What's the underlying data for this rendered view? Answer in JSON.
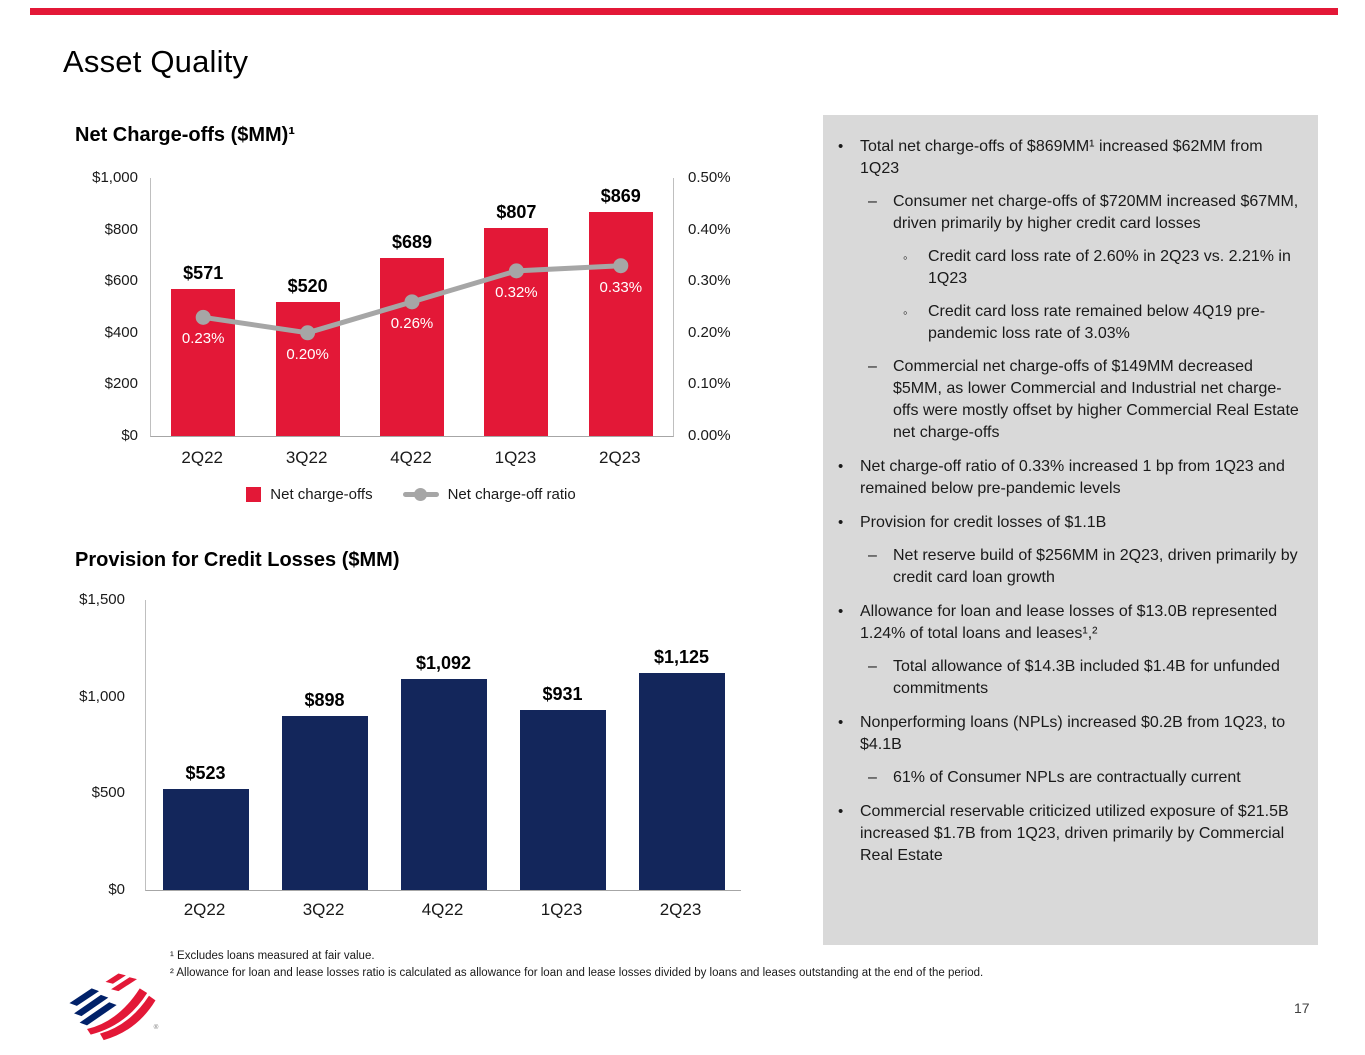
{
  "slide": {
    "title": "Asset Quality",
    "page_number": "17"
  },
  "colors": {
    "red": "#E31837",
    "navy": "#13265B",
    "line_gray": "#A6A6A6",
    "panel_bg": "#D9D9D9",
    "axis_line": "#BFBFBF"
  },
  "chart_data": [
    {
      "type": "bar",
      "title": "Net Charge-offs ($MM)¹",
      "categories": [
        "2Q22",
        "3Q22",
        "4Q22",
        "1Q23",
        "2Q23"
      ],
      "bar_series": {
        "name": "Net charge-offs",
        "values": [
          571,
          520,
          689,
          807,
          869
        ],
        "labels": [
          "$571",
          "$520",
          "$689",
          "$807",
          "$869"
        ]
      },
      "line_series": {
        "name": "Net charge-off ratio",
        "values": [
          0.23,
          0.2,
          0.26,
          0.32,
          0.33
        ],
        "labels": [
          "0.23%",
          "0.20%",
          "0.26%",
          "0.32%",
          "0.33%"
        ]
      },
      "left_axis": {
        "min": 0,
        "max": 1000,
        "ticks": [
          "$1,000",
          "$800",
          "$600",
          "$400",
          "$200",
          "$0"
        ]
      },
      "right_axis": {
        "min": 0,
        "max": 0.5,
        "ticks": [
          "0.50%",
          "0.40%",
          "0.30%",
          "0.20%",
          "0.10%",
          "0.00%"
        ]
      },
      "legend_position": "bottom",
      "grid": false
    },
    {
      "type": "bar",
      "title": "Provision for Credit Losses ($MM)",
      "categories": [
        "2Q22",
        "3Q22",
        "4Q22",
        "1Q23",
        "2Q23"
      ],
      "values": [
        523,
        898,
        1092,
        931,
        1125
      ],
      "labels": [
        "$523",
        "$898",
        "$1,092",
        "$931",
        "$1,125"
      ],
      "y_axis": {
        "min": 0,
        "max": 1500,
        "ticks": [
          "$1,500",
          "$1,000",
          "$500",
          "$0"
        ]
      },
      "grid": false
    }
  ],
  "commentary": {
    "bullets": [
      {
        "level": 1,
        "text": "Total net charge-offs of $869MM¹ increased $62MM from 1Q23"
      },
      {
        "level": 2,
        "text": "Consumer net charge-offs of $720MM increased $67MM, driven primarily by higher credit card losses"
      },
      {
        "level": 3,
        "text": "Credit card loss rate of 2.60% in 2Q23 vs. 2.21% in 1Q23"
      },
      {
        "level": 3,
        "text": "Credit card loss rate remained below 4Q19 pre-pandemic loss rate of 3.03%"
      },
      {
        "level": 2,
        "text": "Commercial net charge-offs of $149MM decreased $5MM, as lower Commercial and Industrial net charge-offs were mostly offset by higher Commercial Real Estate net charge-offs"
      },
      {
        "level": 1,
        "text": "Net charge-off ratio of 0.33% increased 1 bp from 1Q23 and remained below pre-pandemic levels"
      },
      {
        "level": 1,
        "text": "Provision for credit losses of $1.1B"
      },
      {
        "level": 2,
        "text": "Net reserve build of $256MM in 2Q23, driven primarily by credit card loan growth"
      },
      {
        "level": 1,
        "text": "Allowance for loan and lease losses of $13.0B represented 1.24% of total loans and leases¹,²"
      },
      {
        "level": 2,
        "text": "Total allowance of $14.3B included $1.4B for unfunded commitments"
      },
      {
        "level": 1,
        "text": "Nonperforming loans (NPLs) increased $0.2B from 1Q23, to $4.1B"
      },
      {
        "level": 2,
        "text": "61% of Consumer NPLs are contractually current"
      },
      {
        "level": 1,
        "text": "Commercial reservable criticized utilized exposure of $21.5B increased $1.7B from 1Q23, driven primarily by Commercial Real Estate"
      }
    ]
  },
  "footnotes": [
    "¹ Excludes loans measured at fair value.",
    "² Allowance for loan and lease losses ratio is calculated as allowance for loan and lease losses divided by loans and leases outstanding at the end of the period."
  ]
}
